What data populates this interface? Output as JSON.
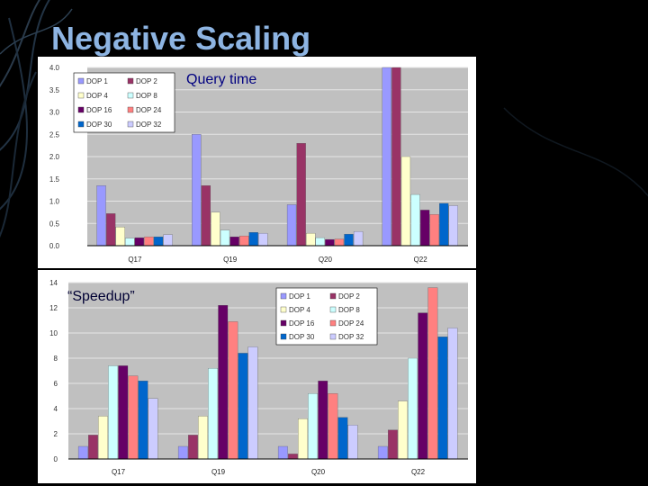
{
  "slide": {
    "title": "Negative Scaling",
    "accent_color": "#8db4e2"
  },
  "chart_data": [
    {
      "type": "bar",
      "title": "Query time",
      "categories": [
        "Q17",
        "Q19",
        "Q20",
        "Q22"
      ],
      "ylim": [
        0,
        4.0
      ],
      "yticks": [
        "0.0",
        "0.5",
        "1.0",
        "1.5",
        "2.0",
        "2.5",
        "3.0",
        "3.5",
        "4.0"
      ],
      "grid": true,
      "legend": "top-left",
      "series": [
        {
          "name": "DOP 1",
          "color": "#9999ff",
          "values": [
            1.35,
            2.5,
            0.92,
            4.0
          ]
        },
        {
          "name": "DOP 2",
          "color": "#993366",
          "values": [
            0.72,
            1.35,
            2.3,
            4.0
          ]
        },
        {
          "name": "DOP 4",
          "color": "#ffffcc",
          "values": [
            0.42,
            0.75,
            0.28,
            2.0
          ]
        },
        {
          "name": "DOP 8",
          "color": "#ccffff",
          "values": [
            0.17,
            0.35,
            0.18,
            1.15
          ]
        },
        {
          "name": "DOP 16",
          "color": "#660066",
          "values": [
            0.18,
            0.2,
            0.14,
            0.8
          ]
        },
        {
          "name": "DOP 24",
          "color": "#ff8080",
          "values": [
            0.2,
            0.22,
            0.15,
            0.7
          ]
        },
        {
          "name": "DOP 30",
          "color": "#0066cc",
          "values": [
            0.2,
            0.3,
            0.26,
            0.95
          ]
        },
        {
          "name": "DOP 32",
          "color": "#ccccff",
          "values": [
            0.25,
            0.28,
            0.32,
            0.9
          ]
        }
      ]
    },
    {
      "type": "bar",
      "title": "“Speedup”",
      "categories": [
        "Q17",
        "Q19",
        "Q20",
        "Q22"
      ],
      "ylim": [
        0,
        14
      ],
      "yticks": [
        "0",
        "2",
        "4",
        "6",
        "8",
        "10",
        "12",
        "14"
      ],
      "grid": true,
      "legend": "top-right",
      "series": [
        {
          "name": "DOP 1",
          "color": "#9999ff",
          "values": [
            1.0,
            1.0,
            1.0,
            1.0
          ]
        },
        {
          "name": "DOP 2",
          "color": "#993366",
          "values": [
            1.9,
            1.9,
            0.4,
            2.3
          ]
        },
        {
          "name": "DOP 4",
          "color": "#ffffcc",
          "values": [
            3.4,
            3.4,
            3.2,
            4.6
          ]
        },
        {
          "name": "DOP 8",
          "color": "#ccffff",
          "values": [
            7.4,
            7.2,
            5.2,
            8.0
          ]
        },
        {
          "name": "DOP 16",
          "color": "#660066",
          "values": [
            7.4,
            12.2,
            6.2,
            11.6
          ]
        },
        {
          "name": "DOP 24",
          "color": "#ff8080",
          "values": [
            6.6,
            10.9,
            5.2,
            13.6
          ]
        },
        {
          "name": "DOP 30",
          "color": "#0066cc",
          "values": [
            6.2,
            8.4,
            3.3,
            9.7
          ]
        },
        {
          "name": "DOP 32",
          "color": "#ccccff",
          "values": [
            4.8,
            8.9,
            2.7,
            10.4
          ]
        }
      ]
    }
  ]
}
